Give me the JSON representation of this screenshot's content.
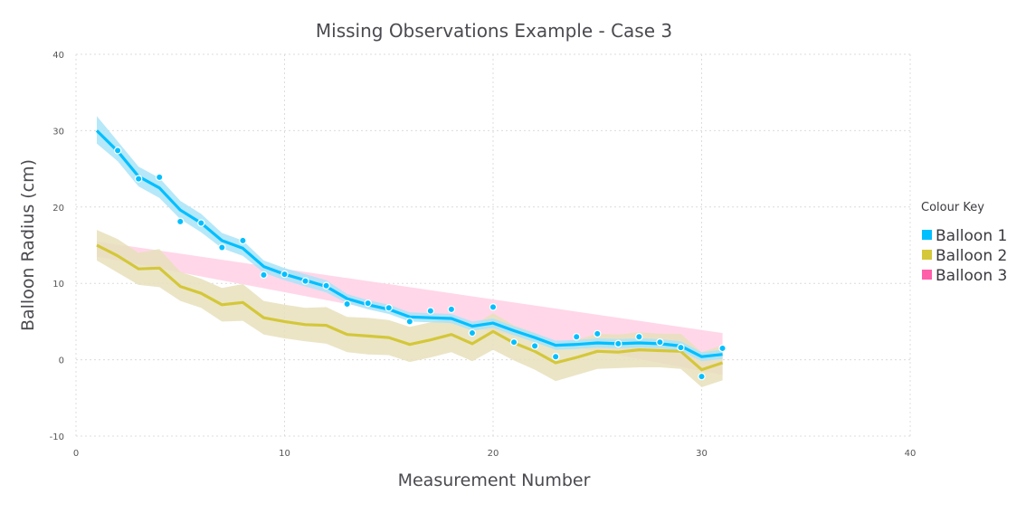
{
  "chart_data": {
    "type": "line",
    "title": "Missing Observations Example - Case 3",
    "xlabel": "Measurement Number",
    "ylabel": "Balloon Radius (cm)",
    "xlim": [
      0,
      40
    ],
    "ylim": [
      -10,
      40
    ],
    "xticks": [
      0,
      10,
      20,
      30,
      40
    ],
    "yticks": [
      -10,
      0,
      10,
      20,
      30,
      40
    ],
    "grid": true,
    "legend": {
      "title": "Colour Key",
      "placement": "right",
      "entries": [
        "Balloon 1",
        "Balloon 2",
        "Balloon 3"
      ]
    },
    "colors": {
      "Balloon 1": "#00bfff",
      "Balloon 1 band": "#a8e4f8",
      "Balloon 2": "#d4c73a",
      "Balloon 2 band": "#e8e0bc",
      "Balloon 3": "#ff5fa8",
      "Balloon 3 band": "#ffd3e6"
    },
    "series": [
      {
        "name": "Balloon 1",
        "x": [
          1,
          2,
          3,
          4,
          5,
          6,
          7,
          8,
          9,
          10,
          11,
          12,
          13,
          14,
          15,
          16,
          17,
          18,
          19,
          20,
          21,
          22,
          23,
          24,
          25,
          26,
          27,
          28,
          29,
          30,
          31
        ],
        "line": [
          30,
          27.3,
          24,
          22.5,
          19.6,
          17.9,
          15.6,
          14.6,
          12.2,
          11.2,
          10.4,
          9.6,
          8,
          7.2,
          6.6,
          5.6,
          5.5,
          5.4,
          4.4,
          4.8,
          3.8,
          2.9,
          1.9,
          2,
          2.2,
          2.1,
          2.2,
          2.1,
          1.8,
          0.4,
          0.7
        ],
        "lower": [
          28.3,
          26,
          22.7,
          21.2,
          18.4,
          16.7,
          14.6,
          13.6,
          11.4,
          10.4,
          9.6,
          8.8,
          7.4,
          6.6,
          6,
          5,
          4.9,
          4.8,
          3.8,
          4.2,
          3.2,
          2.3,
          1.3,
          1.4,
          1.6,
          1.5,
          1.6,
          1.5,
          1.2,
          -0.2,
          0.1
        ],
        "upper": [
          31.9,
          28.6,
          25.3,
          23.8,
          20.8,
          19.1,
          16.6,
          15.6,
          13,
          12,
          11.2,
          10.4,
          8.6,
          7.8,
          7.2,
          6.2,
          6.1,
          6,
          5,
          5.4,
          4.4,
          3.5,
          2.5,
          2.6,
          2.8,
          2.7,
          2.8,
          2.7,
          2.4,
          1,
          1.3
        ],
        "observed_x": [
          2,
          3,
          4,
          5,
          6,
          7,
          8,
          9,
          10,
          11,
          12,
          13,
          14,
          15,
          16,
          17,
          18,
          19,
          20,
          21,
          22,
          23,
          24,
          25,
          26,
          27,
          28,
          29,
          30,
          31
        ],
        "observed_y": [
          27.4,
          23.7,
          23.9,
          18.1,
          17.9,
          14.7,
          15.6,
          11.1,
          11.2,
          10.3,
          9.7,
          7.3,
          7.4,
          6.8,
          5,
          6.4,
          6.6,
          3.5,
          6.9,
          2.3,
          1.8,
          0.4,
          3,
          3.4,
          2.1,
          3,
          2.3,
          1.6,
          -2.2,
          1.5
        ]
      },
      {
        "name": "Balloon 2",
        "x": [
          1,
          2,
          3,
          4,
          5,
          6,
          7,
          8,
          9,
          10,
          11,
          12,
          13,
          14,
          15,
          16,
          17,
          18,
          19,
          20,
          21,
          22,
          23,
          24,
          25,
          26,
          27,
          28,
          29,
          30,
          31
        ],
        "line": [
          15,
          13.6,
          11.9,
          12,
          9.6,
          8.7,
          7.2,
          7.5,
          5.5,
          5,
          4.6,
          4.5,
          3.3,
          3.1,
          2.9,
          2,
          2.6,
          3.3,
          2.1,
          3.7,
          2.2,
          1.1,
          -0.4,
          0.3,
          1.1,
          1,
          1.3,
          1.2,
          1.1,
          -1.3,
          -0.4
        ],
        "lower": [
          13,
          11.4,
          9.8,
          9.5,
          7.7,
          6.8,
          5,
          5.1,
          3.3,
          2.8,
          2.4,
          2.1,
          1,
          0.7,
          0.6,
          -0.3,
          0.3,
          1,
          -0.2,
          1.3,
          -0.1,
          -1.3,
          -2.8,
          -2,
          -1.2,
          -1.1,
          -1,
          -1,
          -1.2,
          -3.6,
          -2.7
        ],
        "upper": [
          17,
          15.8,
          14,
          14.5,
          11.5,
          10.6,
          9.4,
          9.9,
          7.7,
          7.2,
          6.8,
          6.9,
          5.6,
          5.5,
          5.2,
          4.3,
          4.9,
          5.6,
          4.4,
          6.1,
          4.5,
          3.5,
          2,
          2.6,
          3.4,
          3.3,
          3.6,
          3.4,
          3.4,
          1,
          1.9
        ]
      },
      {
        "name": "Balloon 3",
        "x": [
          1,
          31
        ],
        "lower": [
          13.5,
          -2
        ],
        "upper": [
          15.5,
          3.5
        ]
      }
    ]
  }
}
